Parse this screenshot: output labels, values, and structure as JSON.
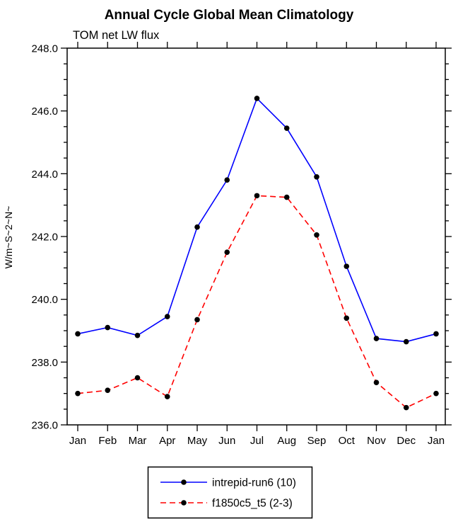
{
  "chart_data": {
    "type": "line",
    "title": "Annual Cycle Global Mean Climatology",
    "subtitle": "TOM net LW flux",
    "xlabel": "",
    "ylabel": "W/m~S~2~N~",
    "ylim": [
      236.0,
      248.0
    ],
    "ytick_interval": 2.0,
    "yminor_interval": 0.5,
    "grid": false,
    "legend_position": "bottom-center",
    "categories": [
      "Jan",
      "Feb",
      "Mar",
      "Apr",
      "May",
      "Jun",
      "Jul",
      "Aug",
      "Sep",
      "Oct",
      "Nov",
      "Dec",
      "Jan"
    ],
    "series": [
      {
        "name": "intrepid-run6 (10)",
        "color": "#0000ff",
        "style": "solid",
        "marker": "circle",
        "marker_color": "#000000",
        "values": [
          238.9,
          239.1,
          238.85,
          239.45,
          242.3,
          243.8,
          246.4,
          245.45,
          243.9,
          241.05,
          238.75,
          238.65,
          238.9
        ]
      },
      {
        "name": "f1850c5_t5 (2-3)",
        "color": "#ff0000",
        "style": "dashed",
        "marker": "circle",
        "marker_color": "#000000",
        "values": [
          237.0,
          237.1,
          237.5,
          236.9,
          239.35,
          241.5,
          243.3,
          243.25,
          242.05,
          239.4,
          237.35,
          236.55,
          237.0
        ]
      }
    ]
  }
}
